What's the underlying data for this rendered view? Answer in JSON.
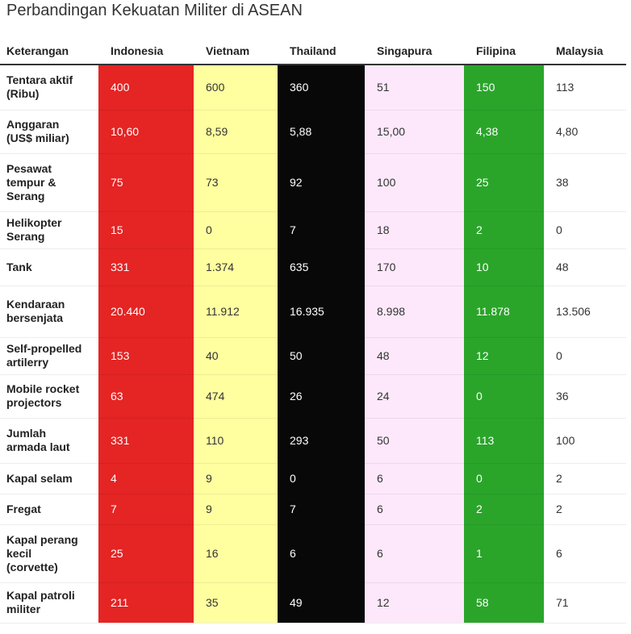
{
  "title": "Perbandingan Kekuatan Militer di ASEAN",
  "colors": {
    "Indonesia": {
      "bg": "#e52424",
      "fg": "#ffffff"
    },
    "Vietnam": {
      "bg": "#ffffa0",
      "fg": "#333333"
    },
    "Thailand": {
      "bg": "#080808",
      "fg": "#ffffff"
    },
    "Singapura": {
      "bg": "#fde8fb",
      "fg": "#333333"
    },
    "Filipina": {
      "bg": "#2aa52a",
      "fg": "#ffffff"
    },
    "Malaysia": {
      "bg": "#ffffff",
      "fg": "#333333"
    }
  },
  "chart_data": {
    "type": "table",
    "title": "Perbandingan Kekuatan Militer di ASEAN",
    "header_label": "Keterangan",
    "columns": [
      "Indonesia",
      "Vietnam",
      "Thailand",
      "Singapura",
      "Filipina",
      "Malaysia"
    ],
    "rows": [
      {
        "label": "Tentara aktif\n(Ribu)",
        "values": [
          "400",
          "600",
          "360",
          "51",
          "150",
          "113"
        ]
      },
      {
        "label": "Anggaran\n(US$ miliar)",
        "values": [
          "10,60",
          "8,59",
          "5,88",
          "15,00",
          "4,38",
          "4,80"
        ]
      },
      {
        "label": "Pesawat\ntempur &\nSerang",
        "values": [
          "75",
          "73",
          "92",
          "100",
          "25",
          "38"
        ]
      },
      {
        "label": "Helikopter\nSerang",
        "values": [
          "15",
          "0",
          "7",
          "18",
          "2",
          "0"
        ]
      },
      {
        "label": "Tank",
        "values": [
          "331",
          "1.374",
          "635",
          "170",
          "10",
          "48"
        ]
      },
      {
        "label": "Kendaraan\nbersenjata",
        "values": [
          "20.440",
          "11.912",
          "16.935",
          "8.998",
          "11.878",
          "13.506"
        ]
      },
      {
        "label": "Self-propelled\nartilerry",
        "values": [
          "153",
          "40",
          "50",
          "48",
          "12",
          "0"
        ]
      },
      {
        "label": "Mobile rocket\nprojectors",
        "values": [
          "63",
          "474",
          "26",
          "24",
          "0",
          "36"
        ]
      },
      {
        "label": "Jumlah\narmada laut",
        "values": [
          "331",
          "110",
          "293",
          "50",
          "113",
          "100"
        ]
      },
      {
        "label": "Kapal selam",
        "values": [
          "4",
          "9",
          "0",
          "6",
          "0",
          "2"
        ]
      },
      {
        "label": "Fregat",
        "values": [
          "7",
          "9",
          "7",
          "6",
          "2",
          "2"
        ]
      },
      {
        "label": "Kapal perang\nkecil\n(corvette)",
        "values": [
          "25",
          "16",
          "6",
          "6",
          "1",
          "6"
        ]
      },
      {
        "label": "Kapal patroli\nmiliter",
        "values": [
          "211",
          "35",
          "49",
          "12",
          "58",
          "71"
        ]
      }
    ]
  }
}
